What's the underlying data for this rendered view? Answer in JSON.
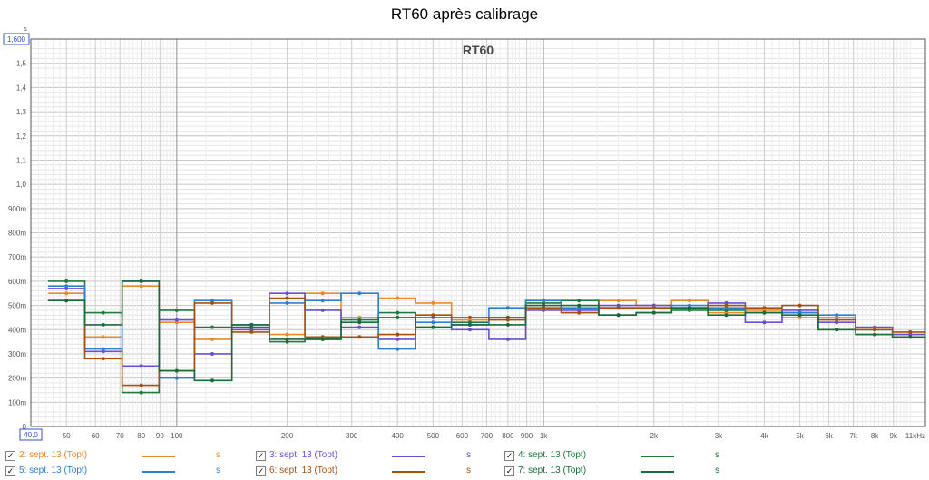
{
  "chart_data": {
    "type": "line",
    "title": "RT60 après calibrage",
    "plot_label": "RT60",
    "x_scale": "log",
    "y_unit": "s",
    "xlim": [
      40,
      11000
    ],
    "ylim": [
      0,
      1.6
    ],
    "y_ticks": [
      0,
      0.1,
      0.2,
      0.3,
      0.4,
      0.5,
      0.6,
      0.7,
      0.8,
      0.9,
      1.0,
      1.1,
      1.2,
      1.3,
      1.4,
      1.5
    ],
    "y_tick_labels": [
      "0",
      "100m",
      "200m",
      "300m",
      "400m",
      "500m",
      "600m",
      "700m",
      "800m",
      "900m",
      "1,0",
      "1,1",
      "1,2",
      "1,3",
      "1,4",
      "1,5"
    ],
    "y_max_label": "1,600",
    "y_unit_label": "s",
    "x_min_label": "40,0",
    "x_ticks": [
      50,
      60,
      70,
      80,
      90,
      100,
      200,
      300,
      400,
      500,
      600,
      700,
      800,
      900,
      1000,
      2000,
      3000,
      4000,
      5000,
      6000,
      7000,
      8000,
      9000,
      11000
    ],
    "x_tick_labels": [
      "50",
      "60",
      "70",
      "80",
      "90",
      "100",
      "200",
      "300",
      "400",
      "500",
      "600",
      "700",
      "800",
      "900",
      "1k",
      "2k",
      "3k",
      "4k",
      "5k",
      "6k",
      "7k",
      "8k",
      "9k",
      "11kHz"
    ],
    "x_major_lines": [
      100,
      1000
    ],
    "grid": true,
    "bands": [
      50,
      63,
      80,
      100,
      125,
      160,
      200,
      250,
      315,
      400,
      500,
      630,
      800,
      1000,
      1250,
      1600,
      2000,
      2500,
      3150,
      4000,
      5000,
      6300,
      8000,
      10000
    ],
    "series": [
      {
        "name": "2: sept. 13 (Topt)",
        "unit": "s",
        "color": "#e8892a",
        "checked": true,
        "values": [
          0.55,
          0.37,
          0.58,
          0.43,
          0.36,
          0.4,
          0.38,
          0.55,
          0.45,
          0.53,
          0.51,
          0.44,
          0.45,
          0.52,
          0.47,
          0.52,
          0.5,
          0.52,
          0.47,
          0.48,
          0.45,
          0.45,
          0.38,
          0.38
        ]
      },
      {
        "name": "3: sept. 13 (Topt)",
        "unit": "s",
        "color": "#6a4fd0",
        "checked": true,
        "values": [
          0.57,
          0.31,
          0.25,
          0.44,
          0.3,
          0.4,
          0.55,
          0.48,
          0.41,
          0.36,
          0.45,
          0.4,
          0.36,
          0.48,
          0.48,
          0.5,
          0.5,
          0.49,
          0.51,
          0.43,
          0.48,
          0.43,
          0.41,
          0.38
        ]
      },
      {
        "name": "4: sept. 13 (Topt)",
        "unit": "s",
        "color": "#1f7a3c",
        "checked": true,
        "values": [
          0.6,
          0.47,
          0.14,
          0.48,
          0.41,
          0.41,
          0.35,
          0.36,
          0.44,
          0.47,
          0.41,
          0.43,
          0.45,
          0.51,
          0.52,
          0.46,
          0.47,
          0.48,
          0.48,
          0.47,
          0.47,
          0.4,
          0.4,
          0.37
        ]
      },
      {
        "name": "5: sept. 13 (Topt)",
        "unit": "s",
        "color": "#2f7fd1",
        "checked": true,
        "values": [
          0.58,
          0.32,
          0.6,
          0.2,
          0.52,
          0.42,
          0.51,
          0.52,
          0.55,
          0.32,
          0.43,
          0.42,
          0.49,
          0.52,
          0.49,
          0.49,
          0.49,
          0.5,
          0.49,
          0.47,
          0.47,
          0.46,
          0.4,
          0.37
        ]
      },
      {
        "name": "6: sept. 13 (Topt)",
        "unit": "s",
        "color": "#a3510f",
        "checked": true,
        "values": [
          0.52,
          0.28,
          0.17,
          0.23,
          0.51,
          0.39,
          0.53,
          0.37,
          0.37,
          0.38,
          0.46,
          0.45,
          0.44,
          0.49,
          0.47,
          0.49,
          0.49,
          0.49,
          0.5,
          0.49,
          0.5,
          0.44,
          0.4,
          0.39
        ]
      },
      {
        "name": "7: sept. 13 (Topt)",
        "unit": "s",
        "color": "#1a6b3a",
        "checked": true,
        "values": [
          0.52,
          0.42,
          0.6,
          0.23,
          0.19,
          0.42,
          0.36,
          0.36,
          0.43,
          0.45,
          0.41,
          0.42,
          0.42,
          0.5,
          0.5,
          0.46,
          0.47,
          0.49,
          0.46,
          0.47,
          0.46,
          0.4,
          0.38,
          0.37
        ]
      }
    ]
  },
  "legend_check_glyph": "✓"
}
